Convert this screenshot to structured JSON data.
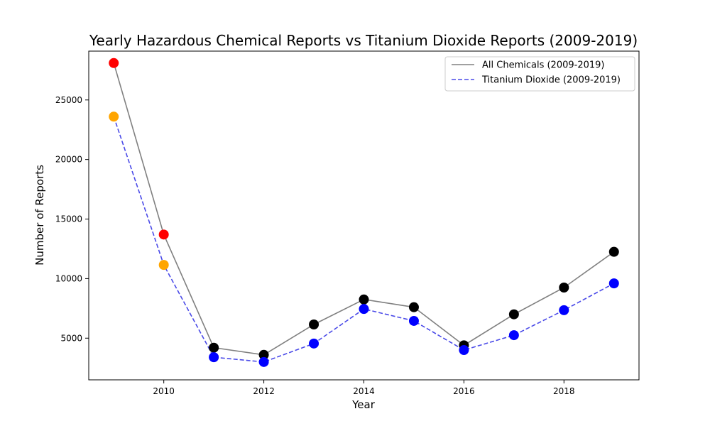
{
  "chart_data": {
    "type": "line",
    "title": "Yearly Hazardous Chemical Reports vs Titanium Dioxide Reports (2009-2019)",
    "xlabel": "Year",
    "ylabel": "Number of Reports",
    "x": [
      2009,
      2010,
      2011,
      2012,
      2013,
      2014,
      2015,
      2016,
      2017,
      2018,
      2019
    ],
    "xlim": [
      2008.5,
      2019.5
    ],
    "ylim": [
      1500,
      29100
    ],
    "xticks": [
      "2010",
      "2012",
      "2014",
      "2016",
      "2018"
    ],
    "yticks": [
      "5000",
      "10000",
      "15000",
      "20000",
      "25000"
    ],
    "grid": false,
    "legend_position": "top-right",
    "series": [
      {
        "name": "All Chemicals (2009-2019)",
        "values": [
          28100,
          13700,
          4200,
          3600,
          6150,
          8250,
          7600,
          4400,
          7000,
          9250,
          12250
        ],
        "line_color": "#808080",
        "line_style": "solid",
        "marker_colors": [
          "#ff0000",
          "#ff0000",
          "#000000",
          "#000000",
          "#000000",
          "#000000",
          "#000000",
          "#000000",
          "#000000",
          "#000000",
          "#000000"
        ]
      },
      {
        "name": "Titanium Dioxide (2009-2019)",
        "values": [
          23600,
          11150,
          3400,
          3000,
          4550,
          7450,
          6450,
          4000,
          5250,
          7350,
          9600
        ],
        "line_color": "#4a4ae8",
        "line_style": "dashed",
        "marker_colors": [
          "#ffa500",
          "#ffa500",
          "#0000ff",
          "#0000ff",
          "#0000ff",
          "#0000ff",
          "#0000ff",
          "#0000ff",
          "#0000ff",
          "#0000ff",
          "#0000ff"
        ]
      }
    ]
  }
}
